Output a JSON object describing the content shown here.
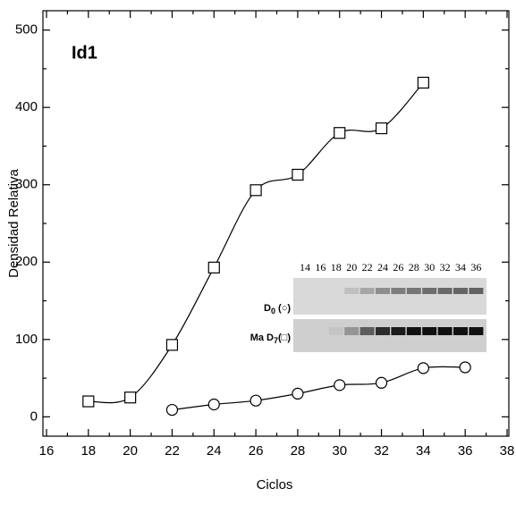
{
  "chart_data": {
    "type": "scatter",
    "annotation": "Id1",
    "x_label": "Ciclos",
    "y_label": "Densidad Relativa",
    "xlim": [
      16,
      38
    ],
    "ylim": [
      -25,
      525
    ],
    "xticks": [
      16,
      18,
      20,
      22,
      24,
      26,
      28,
      30,
      32,
      34,
      36,
      38
    ],
    "yticks": [
      0,
      100,
      200,
      300,
      400,
      500
    ],
    "series": [
      {
        "marker": "square",
        "color": "#000000",
        "x": [
          18,
          20,
          22,
          24,
          26,
          28,
          30,
          32,
          34
        ],
        "values": [
          20,
          25,
          93,
          193,
          293,
          313,
          367,
          373,
          432
        ]
      },
      {
        "marker": "circle",
        "color": "#000000",
        "x": [
          22,
          24,
          26,
          28,
          30,
          32,
          34,
          36
        ],
        "values": [
          9,
          16,
          21,
          30,
          41,
          44,
          63,
          64
        ]
      }
    ]
  },
  "inset": {
    "lanes": [
      "14",
      "16",
      "18",
      "20",
      "22",
      "24",
      "26",
      "28",
      "30",
      "32",
      "34",
      "36"
    ],
    "rows": [
      {
        "prefix": "D",
        "sub": "0",
        "suffix": " (○)"
      },
      {
        "prefix": "Ma D",
        "sub": "7",
        "suffix": "(□)"
      }
    ]
  }
}
